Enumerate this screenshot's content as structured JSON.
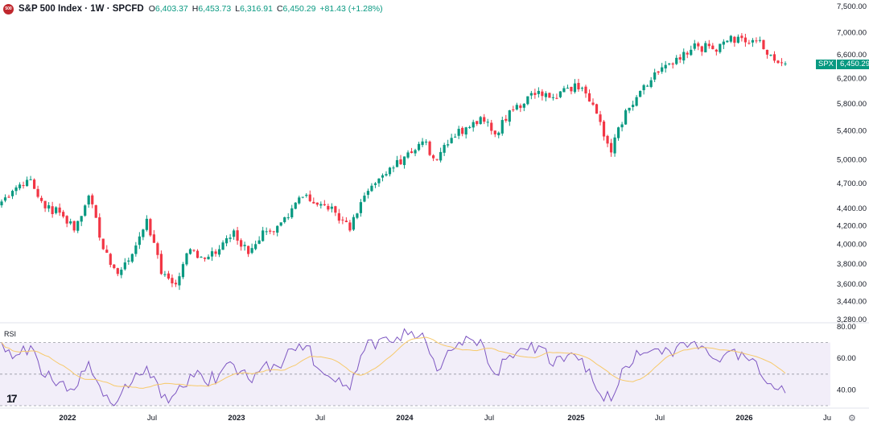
{
  "header": {
    "logo_text": "500",
    "title": "S&P 500 Index · 1W · SPCFD",
    "open_label": "O",
    "open": "6,403.37",
    "high_label": "H",
    "high": "6,453.73",
    "low_label": "L",
    "low": "6,316.91",
    "close_label": "C",
    "close": "6,450.29",
    "change": "+81.43 (+1.28%)"
  },
  "price_tag": {
    "symbol": "SPX",
    "price": "6,450.29"
  },
  "rsi_panel": {
    "label": "RSI"
  },
  "colors": {
    "up": "#089981",
    "down": "#f23645",
    "rsi_line": "#7e57c2",
    "rsi_ma": "#f7c96a",
    "rsi_band": "#ede7f6"
  },
  "chart_data": [
    {
      "type": "candlestick",
      "y_axis_labels": [
        "7,500.00",
        "7,000.00",
        "6,600.00",
        "6,200.00",
        "5,800.00",
        "5,400.00",
        "5,000.00",
        "4,700.00",
        "4,400.00",
        "4,200.00",
        "4,000.00",
        "3,800.00",
        "3,600.00",
        "3,440.00",
        "3,280.00"
      ],
      "x_axis_labels": [
        "2022",
        "Jul",
        "2023",
        "Jul",
        "2024",
        "Jul",
        "2025",
        "Jul",
        "2026",
        "Ju"
      ],
      "y_scale": "log",
      "weekly_close_path": [
        [
          "2021-11",
          4480
        ],
        [
          "2021-12",
          4650
        ],
        [
          "2022-01",
          4750
        ],
        [
          "2022-01-late",
          4400
        ],
        [
          "2022-02",
          4350
        ],
        [
          "2022-03",
          4150
        ],
        [
          "2022-04",
          4550
        ],
        [
          "2022-05",
          3950
        ],
        [
          "2022-06",
          3700
        ],
        [
          "2022-07",
          3900
        ],
        [
          "2022-08",
          4280
        ],
        [
          "2022-09",
          3700
        ],
        [
          "2022-10",
          3600
        ],
        [
          "2022-11",
          3950
        ],
        [
          "2022-12",
          3850
        ],
        [
          "2023-01",
          3950
        ],
        [
          "2023-02",
          4150
        ],
        [
          "2023-03",
          3900
        ],
        [
          "2023-04",
          4150
        ],
        [
          "2023-05",
          4200
        ],
        [
          "2023-06",
          4400
        ],
        [
          "2023-07",
          4560
        ],
        [
          "2023-08",
          4450
        ],
        [
          "2023-09",
          4350
        ],
        [
          "2023-10",
          4150
        ],
        [
          "2023-11",
          4550
        ],
        [
          "2023-12",
          4760
        ],
        [
          "2024-01",
          4900
        ],
        [
          "2024-02",
          5100
        ],
        [
          "2024-03",
          5250
        ],
        [
          "2024-04",
          5000
        ],
        [
          "2024-05",
          5300
        ],
        [
          "2024-06",
          5450
        ],
        [
          "2024-07",
          5600
        ],
        [
          "2024-08",
          5350
        ],
        [
          "2024-09",
          5700
        ],
        [
          "2024-10",
          5800
        ],
        [
          "2024-11",
          6000
        ],
        [
          "2024-12",
          5900
        ],
        [
          "2025-01",
          6050
        ],
        [
          "2025-02",
          6050
        ],
        [
          "2025-03",
          5650
        ],
        [
          "2025-04",
          5100
        ],
        [
          "2025-05",
          5700
        ],
        [
          "2025-06",
          6000
        ],
        [
          "2025-07",
          6300
        ],
        [
          "2025-08",
          6450
        ],
        [
          "2025-09",
          6650
        ],
        [
          "2025-10",
          6750
        ],
        [
          "2025-11",
          6700
        ],
        [
          "2025-12",
          6850
        ],
        [
          "2026-01",
          6900
        ],
        [
          "2026-02",
          6850
        ],
        [
          "2026-03",
          6600
        ],
        [
          "2026-04",
          6450
        ]
      ]
    },
    {
      "type": "line",
      "title": "RSI",
      "y_axis_labels": [
        "80.00",
        "60.00",
        "40.00"
      ],
      "ylim": [
        30,
        80
      ],
      "bands": [
        70,
        50,
        30
      ],
      "rsi_path": [
        [
          "2021-11",
          70
        ],
        [
          "2021-12",
          62
        ],
        [
          "2022-01",
          68
        ],
        [
          "2022-01-late",
          48
        ],
        [
          "2022-02",
          45
        ],
        [
          "2022-03",
          40
        ],
        [
          "2022-04",
          58
        ],
        [
          "2022-05",
          36
        ],
        [
          "2022-06",
          33
        ],
        [
          "2022-07",
          45
        ],
        [
          "2022-08",
          55
        ],
        [
          "2022-09",
          35
        ],
        [
          "2022-10",
          38
        ],
        [
          "2022-11",
          50
        ],
        [
          "2022-12",
          45
        ],
        [
          "2023-01",
          50
        ],
        [
          "2023-02",
          56
        ],
        [
          "2023-03",
          47
        ],
        [
          "2023-04",
          55
        ],
        [
          "2023-05",
          55
        ],
        [
          "2023-06",
          66
        ],
        [
          "2023-07",
          68
        ],
        [
          "2023-08",
          52
        ],
        [
          "2023-09",
          45
        ],
        [
          "2023-10",
          40
        ],
        [
          "2023-11",
          65
        ],
        [
          "2023-12",
          72
        ],
        [
          "2024-01",
          70
        ],
        [
          "2024-02",
          75
        ],
        [
          "2024-03",
          76
        ],
        [
          "2024-04",
          52
        ],
        [
          "2024-05",
          65
        ],
        [
          "2024-06",
          74
        ],
        [
          "2024-07",
          72
        ],
        [
          "2024-08",
          50
        ],
        [
          "2024-09",
          62
        ],
        [
          "2024-10",
          66
        ],
        [
          "2024-11",
          68
        ],
        [
          "2024-12",
          55
        ],
        [
          "2025-01",
          62
        ],
        [
          "2025-02",
          60
        ],
        [
          "2025-03",
          40
        ],
        [
          "2025-04",
          33
        ],
        [
          "2025-05",
          55
        ],
        [
          "2025-06",
          62
        ],
        [
          "2025-07",
          66
        ],
        [
          "2025-08",
          65
        ],
        [
          "2025-09",
          70
        ],
        [
          "2025-10",
          66
        ],
        [
          "2025-11",
          60
        ],
        [
          "2025-12",
          64
        ],
        [
          "2026-01",
          64
        ],
        [
          "2026-02",
          58
        ],
        [
          "2026-03",
          44
        ],
        [
          "2026-04",
          38
        ]
      ]
    }
  ]
}
